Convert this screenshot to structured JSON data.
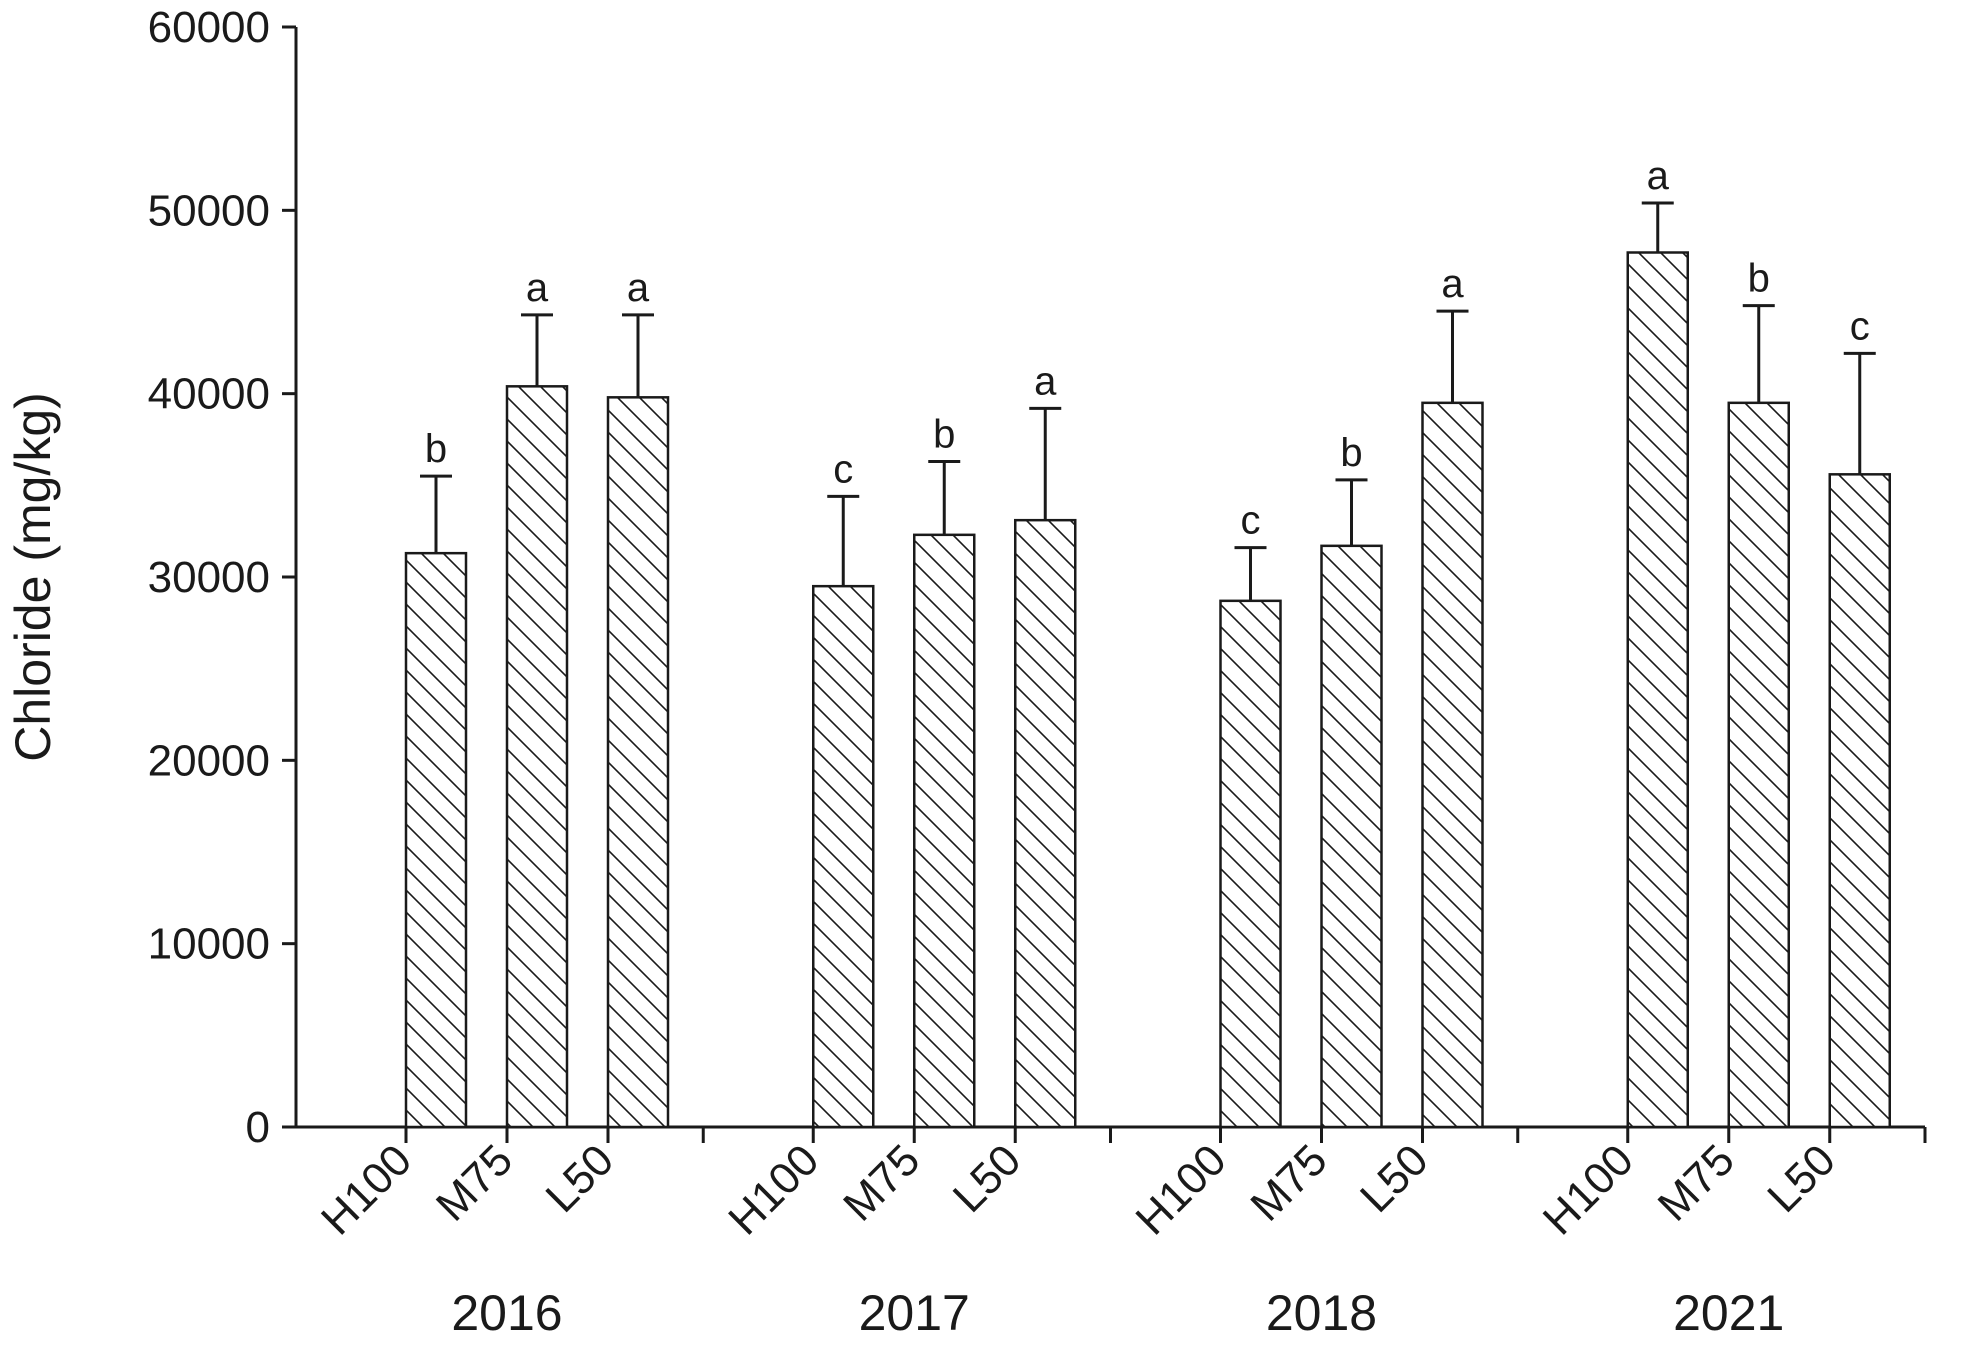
{
  "chart_data": {
    "type": "bar",
    "ylabel": "Chloride (mg/kg)",
    "ylim": [
      0,
      60000
    ],
    "yticks": [
      0,
      10000,
      20000,
      30000,
      40000,
      50000,
      60000
    ],
    "grid": false,
    "legend": "none",
    "pattern": "diagonal-hatch",
    "groups": [
      {
        "name": "2016",
        "bars": [
          {
            "category": "H100",
            "value": 31300,
            "error": 4200,
            "letter": "b"
          },
          {
            "category": "M75",
            "value": 40400,
            "error": 3900,
            "letter": "a"
          },
          {
            "category": "L50",
            "value": 39800,
            "error": 4500,
            "letter": "a"
          }
        ]
      },
      {
        "name": "2017",
        "bars": [
          {
            "category": "H100",
            "value": 29500,
            "error": 4900,
            "letter": "c"
          },
          {
            "category": "M75",
            "value": 32300,
            "error": 4000,
            "letter": "b"
          },
          {
            "category": "L50",
            "value": 33100,
            "error": 6100,
            "letter": "a"
          }
        ]
      },
      {
        "name": "2018",
        "bars": [
          {
            "category": "H100",
            "value": 28700,
            "error": 2900,
            "letter": "c"
          },
          {
            "category": "M75",
            "value": 31700,
            "error": 3600,
            "letter": "b"
          },
          {
            "category": "L50",
            "value": 39500,
            "error": 5000,
            "letter": "a"
          }
        ]
      },
      {
        "name": "2021",
        "bars": [
          {
            "category": "H100",
            "value": 47700,
            "error": 2700,
            "letter": "a"
          },
          {
            "category": "M75",
            "value": 39500,
            "error": 5300,
            "letter": "b"
          },
          {
            "category": "L50",
            "value": 35600,
            "error": 6600,
            "letter": "c"
          }
        ]
      }
    ]
  }
}
